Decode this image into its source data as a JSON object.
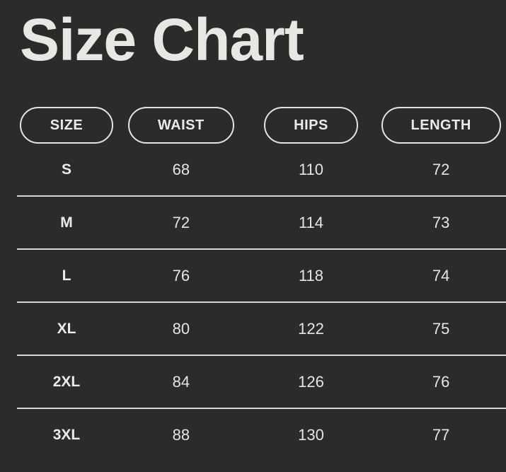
{
  "title": "Size Chart",
  "colors": {
    "background": "#2b2b2b",
    "text": "#e9e7e1",
    "divider": "#d9d7d1",
    "pill_border": "#e6e4de"
  },
  "chart_data": {
    "type": "table",
    "title": "Size Chart",
    "columns": [
      "SIZE",
      "WAIST",
      "HIPS",
      "LENGTH"
    ],
    "rows": [
      [
        "S",
        68,
        110,
        72
      ],
      [
        "M",
        72,
        114,
        73
      ],
      [
        "L",
        76,
        118,
        74
      ],
      [
        "XL",
        80,
        122,
        75
      ],
      [
        "2XL",
        84,
        126,
        76
      ],
      [
        "3XL",
        88,
        130,
        77
      ]
    ]
  }
}
